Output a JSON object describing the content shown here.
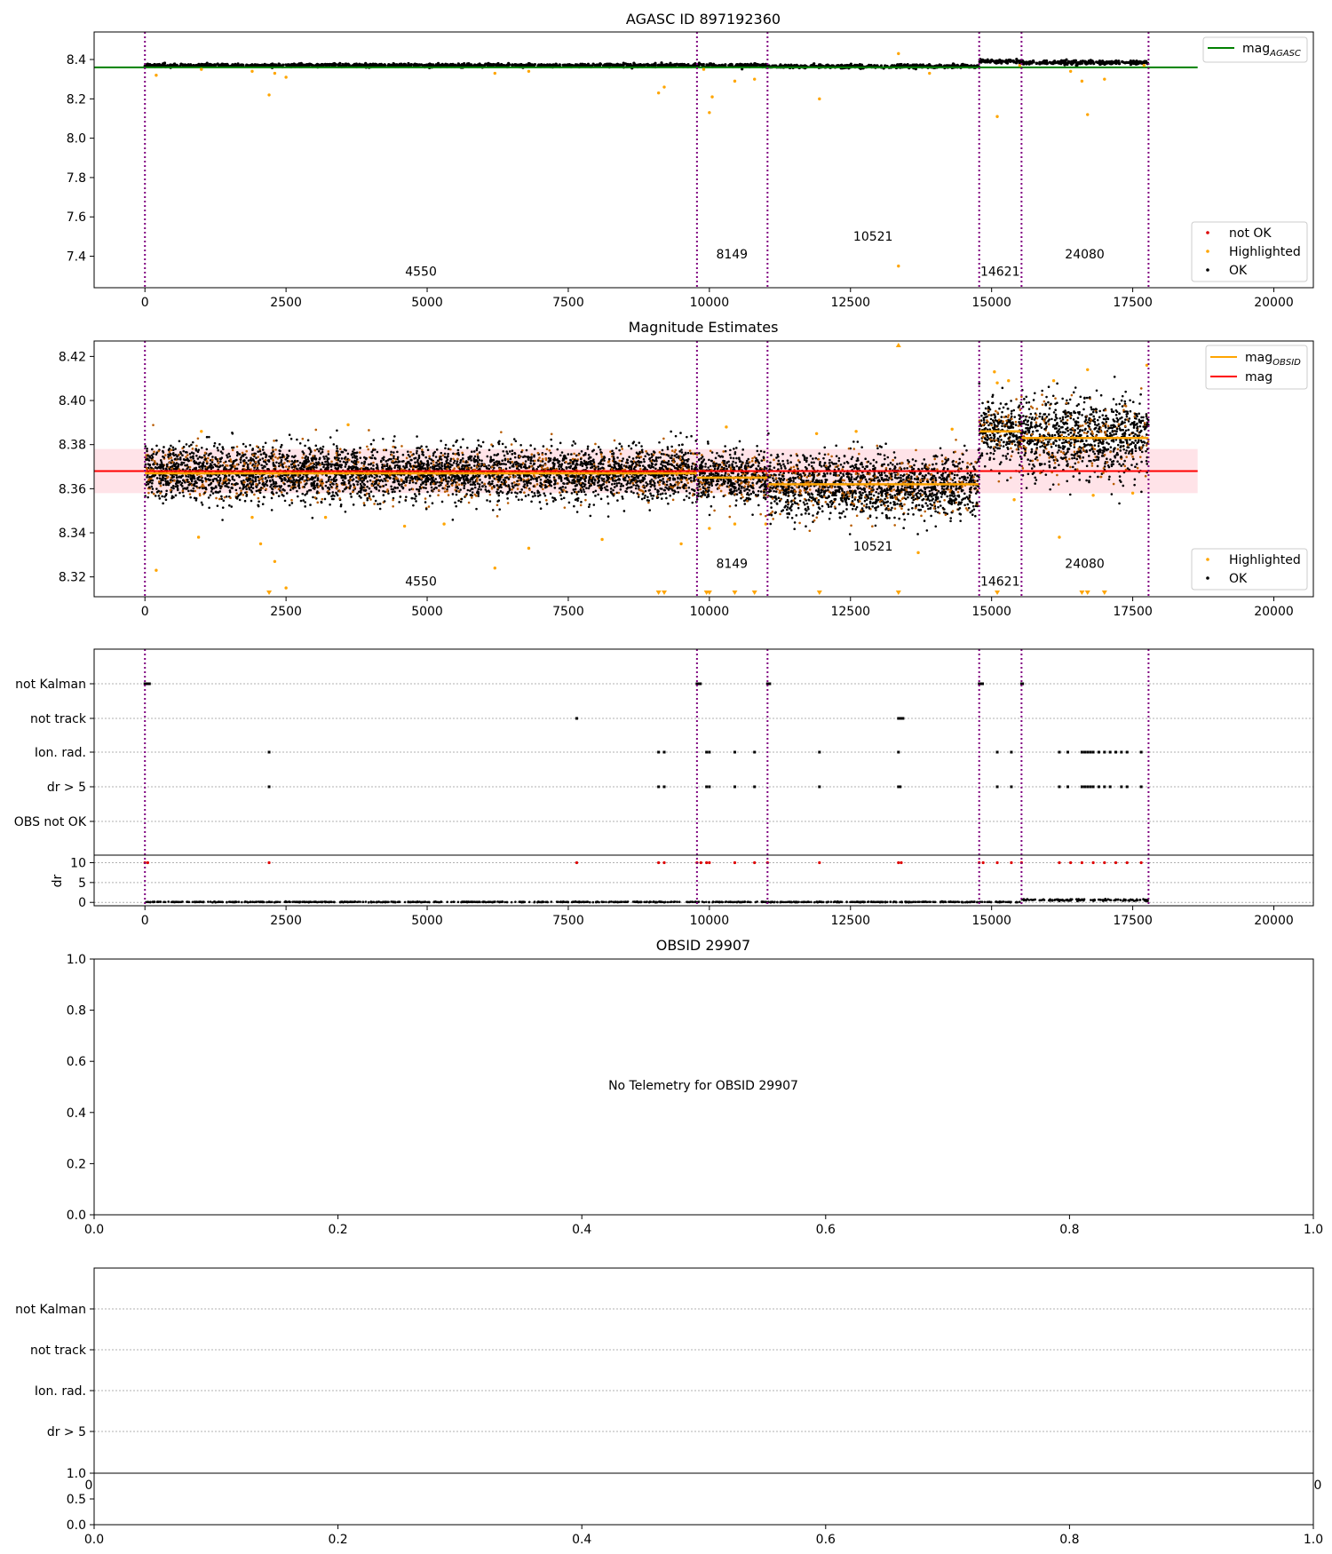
{
  "colors": {
    "ok": "#000000",
    "highlighted": "#ffa500",
    "not_ok": "#dd0000",
    "mag_agasc": "#008000",
    "mag_obsid": "#ffa500",
    "mag": "#ff0000",
    "band": "#ffc0cb",
    "obsid_line": "#800080",
    "grid": "#b0b0b0"
  },
  "chart_data": [
    {
      "type": "scatter",
      "title": "AGASC ID 897192360",
      "xlim": [
        -900,
        20700
      ],
      "ylim": [
        7.24,
        8.54
      ],
      "x_ticks": [
        0,
        2500,
        5000,
        7500,
        10000,
        12500,
        15000,
        17500,
        20000
      ],
      "x_tick_labels": [
        "0",
        "2500",
        "5000",
        "7500",
        "10000",
        "12500",
        "15000",
        "17500",
        "20000"
      ],
      "y_ticks": [
        7.4,
        7.6,
        7.8,
        8.0,
        8.2,
        8.4
      ],
      "y_tick_labels": [
        "7.4",
        "7.6",
        "7.8",
        "8.0",
        "8.2",
        "8.4"
      ],
      "obsid_boundaries": [
        0,
        9780,
        11030,
        14780,
        15530,
        17780
      ],
      "obsid_labels": [
        {
          "text": "4550",
          "x": 4890,
          "y": 7.3
        },
        {
          "text": "8149",
          "x": 10400,
          "y": 7.39
        },
        {
          "text": "10521",
          "x": 12900,
          "y": 7.48
        },
        {
          "text": "14621",
          "x": 15150,
          "y": 7.3
        },
        {
          "text": "24080",
          "x": 16650,
          "y": 7.39
        }
      ],
      "series": [
        {
          "name": "mag_AGASC",
          "type": "line",
          "x": [
            -900,
            18650
          ],
          "y": [
            8.36,
            8.36
          ]
        },
        {
          "name": "OK",
          "segments": [
            {
              "x0": 0,
              "x1": 9780,
              "mean": 8.37,
              "spread": 0.012
            },
            {
              "x0": 9780,
              "x1": 11030,
              "mean": 8.37,
              "spread": 0.012
            },
            {
              "x0": 11030,
              "x1": 14780,
              "mean": 8.365,
              "spread": 0.012
            },
            {
              "x0": 14780,
              "x1": 15530,
              "mean": 8.39,
              "spread": 0.012
            },
            {
              "x0": 15530,
              "x1": 17780,
              "mean": 8.385,
              "spread": 0.015
            }
          ]
        },
        {
          "name": "Highlighted",
          "points": [
            [
              200,
              8.32
            ],
            [
              1000,
              8.35
            ],
            [
              1900,
              8.34
            ],
            [
              2200,
              8.22
            ],
            [
              2300,
              8.33
            ],
            [
              2500,
              8.31
            ],
            [
              6200,
              8.33
            ],
            [
              6800,
              8.34
            ],
            [
              9100,
              8.23
            ],
            [
              9200,
              8.26
            ],
            [
              9900,
              8.35
            ],
            [
              10000,
              8.13
            ],
            [
              10050,
              8.21
            ],
            [
              10450,
              8.29
            ],
            [
              10800,
              8.3
            ],
            [
              11950,
              8.2
            ],
            [
              13350,
              8.43
            ],
            [
              13350,
              7.35
            ],
            [
              13900,
              8.33
            ],
            [
              15100,
              8.11
            ],
            [
              15500,
              8.37
            ],
            [
              16400,
              8.34
            ],
            [
              16600,
              8.29
            ],
            [
              16700,
              8.12
            ],
            [
              17000,
              8.3
            ],
            [
              17700,
              8.37
            ]
          ]
        },
        {
          "name": "not OK",
          "points": []
        }
      ],
      "legend_top": {
        "placement": "top-right",
        "entries": [
          {
            "name": "mag",
            "sub": "AGASC"
          }
        ]
      },
      "legend_bottom": {
        "placement": "bottom-right",
        "entries": [
          "not OK",
          "Highlighted",
          "OK"
        ]
      }
    },
    {
      "type": "scatter",
      "title": "Magnitude Estimates",
      "xlim": [
        -900,
        20700
      ],
      "ylim": [
        8.311,
        8.427
      ],
      "x_ticks": [
        0,
        2500,
        5000,
        7500,
        10000,
        12500,
        15000,
        17500,
        20000
      ],
      "x_tick_labels": [
        "0",
        "2500",
        "5000",
        "7500",
        "10000",
        "12500",
        "15000",
        "17500",
        "20000"
      ],
      "y_ticks": [
        8.32,
        8.34,
        8.36,
        8.38,
        8.4,
        8.42
      ],
      "y_tick_labels": [
        "8.32",
        "8.34",
        "8.36",
        "8.38",
        "8.40",
        "8.42"
      ],
      "obsid_labels": [
        {
          "text": "4550",
          "x": 4890,
          "y": 8.316
        },
        {
          "text": "8149",
          "x": 10400,
          "y": 8.324
        },
        {
          "text": "10521",
          "x": 12900,
          "y": 8.332
        },
        {
          "text": "14621",
          "x": 15150,
          "y": 8.316
        },
        {
          "text": "24080",
          "x": 16650,
          "y": 8.324
        }
      ],
      "mag": 8.368,
      "mag_band": [
        8.358,
        8.378
      ],
      "mag_obsid": [
        {
          "x0": 0,
          "x1": 9780,
          "y": 8.367
        },
        {
          "x0": 9780,
          "x1": 11030,
          "y": 8.365
        },
        {
          "x0": 11030,
          "x1": 14780,
          "y": 8.362
        },
        {
          "x0": 14780,
          "x1": 15530,
          "y": 8.386
        },
        {
          "x0": 15530,
          "x1": 17780,
          "y": 8.383
        }
      ],
      "ok_segments": [
        {
          "x0": 0,
          "x1": 9780,
          "mean": 8.367,
          "spread": 0.006
        },
        {
          "x0": 9780,
          "x1": 11030,
          "mean": 8.365,
          "spread": 0.006
        },
        {
          "x0": 11030,
          "x1": 14780,
          "mean": 8.361,
          "spread": 0.007
        },
        {
          "x0": 14780,
          "x1": 15530,
          "mean": 8.386,
          "spread": 0.007
        },
        {
          "x0": 15530,
          "x1": 17780,
          "mean": 8.383,
          "spread": 0.009
        }
      ],
      "highlighted_points": [
        [
          200,
          8.323
        ],
        [
          950,
          8.338
        ],
        [
          1000,
          8.386
        ],
        [
          1900,
          8.347
        ],
        [
          2050,
          8.335
        ],
        [
          2300,
          8.327
        ],
        [
          2500,
          8.315
        ],
        [
          3200,
          8.347
        ],
        [
          3600,
          8.389
        ],
        [
          4600,
          8.343
        ],
        [
          5300,
          8.344
        ],
        [
          6200,
          8.324
        ],
        [
          6800,
          8.333
        ],
        [
          8100,
          8.337
        ],
        [
          9500,
          8.335
        ],
        [
          10000,
          8.342
        ],
        [
          10300,
          8.388
        ],
        [
          10450,
          8.344
        ],
        [
          11000,
          8.344
        ],
        [
          11900,
          8.385
        ],
        [
          12600,
          8.386
        ],
        [
          13700,
          8.331
        ],
        [
          14300,
          8.387
        ],
        [
          15050,
          8.413
        ],
        [
          15100,
          8.408
        ],
        [
          15300,
          8.409
        ],
        [
          15400,
          8.355
        ],
        [
          16100,
          8.409
        ],
        [
          16200,
          8.338
        ],
        [
          16700,
          8.414
        ],
        [
          16800,
          8.357
        ],
        [
          17500,
          8.358
        ],
        [
          17750,
          8.416
        ]
      ],
      "highlighted_offscale_x": [
        2200,
        9100,
        9200,
        9950,
        10000,
        10450,
        10800,
        11950,
        13350,
        15100,
        16600,
        16700,
        17000
      ],
      "offscale_top_x": [
        13350
      ],
      "legend_top": {
        "placement": "top-right",
        "entries": [
          {
            "name": "mag",
            "sub": "OBSID"
          },
          {
            "name": "mag",
            "sub": ""
          }
        ]
      },
      "legend_bottom": {
        "placement": "bottom-right",
        "entries": [
          "Highlighted",
          "OK"
        ]
      }
    },
    {
      "type": "scatter",
      "title": "",
      "xlim": [
        -900,
        20700
      ],
      "x_ticks": [
        0,
        2500,
        5000,
        7500,
        10000,
        12500,
        15000,
        17500,
        20000
      ],
      "x_tick_labels": [
        "0",
        "2500",
        "5000",
        "7500",
        "10000",
        "12500",
        "15000",
        "17500",
        "20000"
      ],
      "flag_rows": [
        "not Kalman",
        "not track",
        "Ion. rad.",
        "dr > 5",
        "OBS not OK"
      ],
      "flag_points": {
        "not Kalman": [
          0,
          20,
          40,
          60,
          80,
          9780,
          9800,
          9820,
          9840,
          11030,
          11050,
          11070,
          14780,
          14800,
          14820,
          14840,
          15530,
          15550
        ],
        "not track": [
          7650,
          13350,
          13370,
          13390,
          13410,
          13430
        ],
        "Ion. rad.": [
          2200,
          9100,
          9200,
          9950,
          10000,
          10450,
          10800,
          11950,
          13350,
          15100,
          15350,
          16200,
          16350,
          16600,
          16650,
          16700,
          16750,
          16800,
          16900,
          17000,
          17100,
          17200,
          17300,
          17400,
          17650
        ],
        "dr > 5": [
          2200,
          9100,
          9200,
          9950,
          10000,
          10450,
          10800,
          11950,
          13350,
          13380,
          15100,
          15350,
          16200,
          16350,
          16600,
          16650,
          16700,
          16750,
          16800,
          16900,
          17000,
          17100,
          17300,
          17400,
          17650
        ],
        "OBS not OK": []
      },
      "dr_ylim": [
        -0.4,
        11
      ],
      "dr_ylabel": "dr",
      "dr_ticks": [
        0,
        5,
        10
      ],
      "dr_tick_labels": [
        "0",
        "5",
        "10"
      ],
      "dr_high_x": [
        0,
        50,
        2200,
        7650,
        9100,
        9200,
        9780,
        9850,
        9950,
        10000,
        10450,
        10800,
        11030,
        11950,
        13350,
        13400,
        14780,
        14850,
        15100,
        15350,
        15530,
        16200,
        16400,
        16600,
        16800,
        17000,
        17200,
        17400,
        17650
      ]
    },
    {
      "type": "scatter",
      "title": "OBSID 29907",
      "xlim": [
        0,
        1
      ],
      "ylim": [
        0,
        1
      ],
      "x_ticks": [
        0,
        0.2,
        0.4,
        0.6,
        0.8,
        1.0
      ],
      "x_tick_labels": [
        "0.0",
        "0.2",
        "0.4",
        "0.6",
        "0.8",
        "1.0"
      ],
      "y_ticks": [
        0,
        0.2,
        0.4,
        0.6,
        0.8,
        1.0
      ],
      "y_tick_labels": [
        "0.0",
        "0.2",
        "0.4",
        "0.6",
        "0.8",
        "1.0"
      ],
      "message": "No Telemetry for OBSID 29907",
      "series": []
    },
    {
      "type": "scatter",
      "title": "",
      "flag_rows": [
        "not Kalman",
        "not track",
        "Ion. rad.",
        "dr > 5"
      ],
      "top_x_tick_labels": [
        "0",
        "0"
      ],
      "x_ticks": [
        0,
        0.2,
        0.4,
        0.6,
        0.8,
        1.0
      ],
      "x_tick_labels": [
        "0.0",
        "0.2",
        "0.4",
        "0.6",
        "0.8",
        "1.0"
      ],
      "y_ticks": [
        0,
        0.5,
        1.0
      ],
      "y_tick_labels": [
        "0.0",
        "0.5",
        "1.0"
      ],
      "series": []
    }
  ]
}
